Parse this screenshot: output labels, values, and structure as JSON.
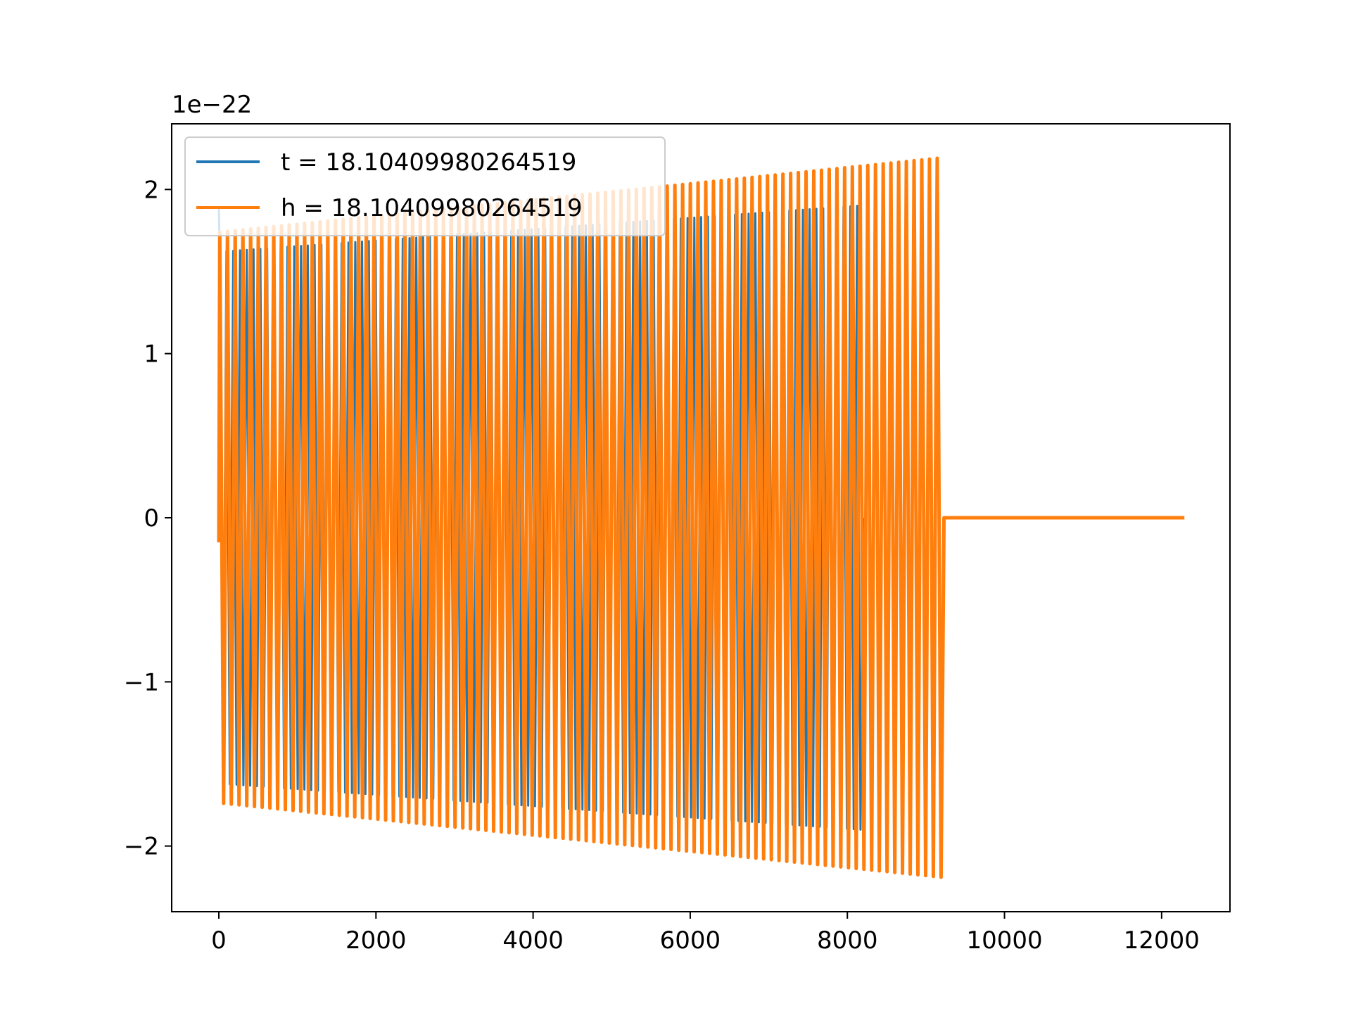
{
  "chart_data": {
    "type": "line",
    "title": "",
    "xlabel": "",
    "ylabel": "",
    "y_offset_label": "1e−22",
    "xlim": [
      -600,
      12870
    ],
    "ylim": [
      -2.4,
      2.4
    ],
    "x_ticks": [
      0,
      2000,
      4000,
      6000,
      8000,
      10000,
      12000
    ],
    "x_tick_labels": [
      "0",
      "2000",
      "4000",
      "6000",
      "8000",
      "10000",
      "12000"
    ],
    "y_ticks": [
      -2,
      -1,
      0,
      1,
      2
    ],
    "y_tick_labels": [
      "−2",
      "−1",
      "0",
      "1",
      "2"
    ],
    "grid": false,
    "legend_placement": "upper-left",
    "series": [
      {
        "name": "t = 18.10409980264519",
        "color": "#1f77b4",
        "kind": "oscillation",
        "x_start": 0,
        "x_end": 8200,
        "amplitude_start": 1.62,
        "amplitude_end": 1.9,
        "cycles": 95,
        "initial_value": 1.9
      },
      {
        "name": "h = 18.10409980264519",
        "color": "#ff7f0e",
        "kind": "oscillation",
        "x_start": 0,
        "x_end": 9230,
        "amplitude_start": 1.74,
        "amplitude_end": 2.19,
        "cycles": 94,
        "tail_x_end": 12290,
        "tail_value": 0.0
      }
    ]
  }
}
